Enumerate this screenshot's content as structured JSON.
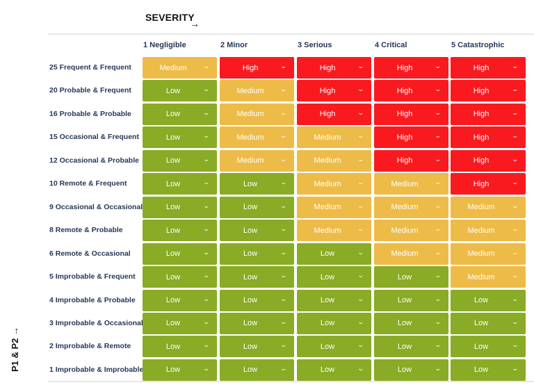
{
  "severity_title": "SEVERITY",
  "y_axis_title": "P1 & P2",
  "arrow_icon": "→",
  "colors": {
    "Low": "#8aab25",
    "Medium": "#edbb47",
    "High": "#f91a1f"
  },
  "columns": [
    "1 Negligible",
    "2 Minor",
    "3 Serious",
    "4 Critical",
    "5 Catastrophic"
  ],
  "rows": [
    {
      "label": "25 Frequent & Frequent",
      "cells": [
        "Medium",
        "High",
        "High",
        "High",
        "High"
      ]
    },
    {
      "label": "20 Probable & Frequent",
      "cells": [
        "Low",
        "Medium",
        "High",
        "High",
        "High"
      ]
    },
    {
      "label": "16 Probable & Probable",
      "cells": [
        "Low",
        "Medium",
        "High",
        "High",
        "High"
      ]
    },
    {
      "label": "15 Occasional & Frequent",
      "cells": [
        "Low",
        "Medium",
        "Medium",
        "High",
        "High"
      ]
    },
    {
      "label": "12 Occasional & Probable",
      "cells": [
        "Low",
        "Medium",
        "Medium",
        "High",
        "High"
      ]
    },
    {
      "label": "10 Remote & Frequent",
      "cells": [
        "Low",
        "Low",
        "Medium",
        "Medium",
        "High"
      ]
    },
    {
      "label": "9 Occasional & Occasional",
      "cells": [
        "Low",
        "Low",
        "Medium",
        "Medium",
        "Medium"
      ]
    },
    {
      "label": "8 Remote & Probable",
      "cells": [
        "Low",
        "Low",
        "Medium",
        "Medium",
        "Medium"
      ]
    },
    {
      "label": "6 Remote & Occasional",
      "cells": [
        "Low",
        "Low",
        "Low",
        "Medium",
        "Medium"
      ]
    },
    {
      "label": "5 Improbable & Frequent",
      "cells": [
        "Low",
        "Low",
        "Low",
        "Low",
        "Medium"
      ]
    },
    {
      "label": "4 Improbable & Probable",
      "cells": [
        "Low",
        "Low",
        "Low",
        "Low",
        "Low"
      ]
    },
    {
      "label": "3 Improbable & Occasional",
      "cells": [
        "Low",
        "Low",
        "Low",
        "Low",
        "Low"
      ]
    },
    {
      "label": "2 Improbable & Remote",
      "cells": [
        "Low",
        "Low",
        "Low",
        "Low",
        "Low"
      ]
    },
    {
      "label": "1 Improbable & Improbable",
      "cells": [
        "Low",
        "Low",
        "Low",
        "Low",
        "Low"
      ]
    }
  ]
}
